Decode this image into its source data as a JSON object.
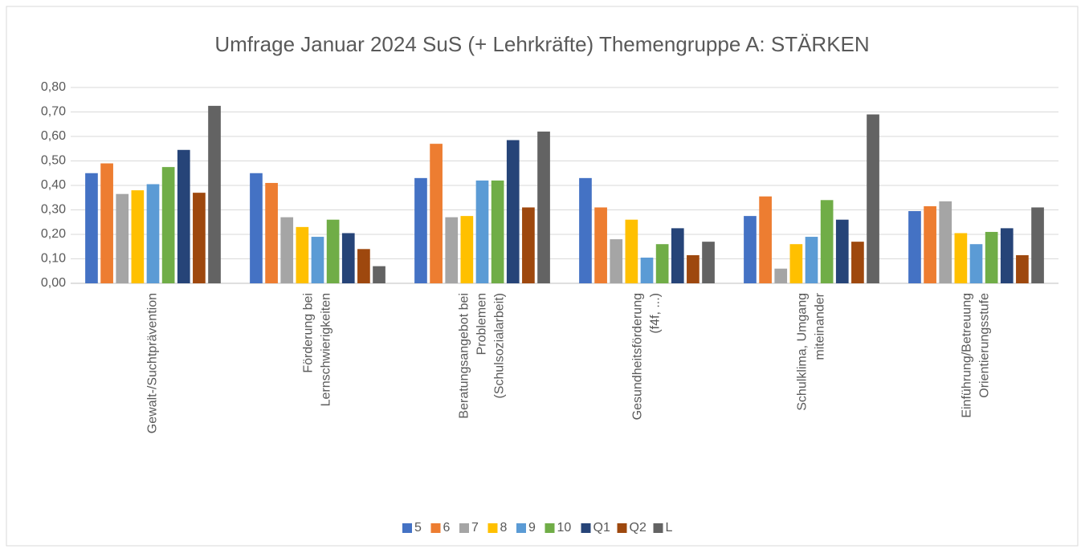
{
  "chart_data": {
    "type": "bar",
    "title": "Umfrage Januar 2024 SuS (+ Lehrkräfte) Themengruppe  A: STÄRKEN",
    "categories": [
      [
        "Gewalt-/Suchtprävention"
      ],
      [
        "Förderung bei",
        "Lernschwierigkeiten"
      ],
      [
        "Beratungsangebot bei",
        "Problemen",
        "(Schulsozialarbeit)"
      ],
      [
        "Gesundheitsförderung",
        "(f4f, ...)"
      ],
      [
        "Schulklima, Umgang",
        "miteinander"
      ],
      [
        "Einführung/Betreuung",
        "Orientierungsstufe"
      ]
    ],
    "series": [
      {
        "name": "5",
        "color": "#4472c4",
        "values": [
          0.45,
          0.45,
          0.43,
          0.43,
          0.275,
          0.295
        ]
      },
      {
        "name": "6",
        "color": "#ed7d31",
        "values": [
          0.49,
          0.41,
          0.57,
          0.31,
          0.355,
          0.315
        ]
      },
      {
        "name": "7",
        "color": "#a5a5a5",
        "values": [
          0.365,
          0.27,
          0.27,
          0.18,
          0.06,
          0.335
        ]
      },
      {
        "name": "8",
        "color": "#ffc000",
        "values": [
          0.38,
          0.23,
          0.275,
          0.26,
          0.16,
          0.205
        ]
      },
      {
        "name": "9",
        "color": "#5b9bd5",
        "values": [
          0.405,
          0.19,
          0.42,
          0.105,
          0.19,
          0.16
        ]
      },
      {
        "name": "10",
        "color": "#70ad47",
        "values": [
          0.475,
          0.26,
          0.42,
          0.16,
          0.34,
          0.21
        ]
      },
      {
        "name": "Q1",
        "color": "#264478",
        "values": [
          0.545,
          0.205,
          0.585,
          0.225,
          0.26,
          0.225
        ]
      },
      {
        "name": "Q2",
        "color": "#9e480e",
        "values": [
          0.37,
          0.14,
          0.31,
          0.115,
          0.17,
          0.115
        ]
      },
      {
        "name": "L",
        "color": "#636363",
        "values": [
          0.725,
          0.07,
          0.62,
          0.17,
          0.69,
          0.31
        ]
      }
    ],
    "ylim": [
      0,
      0.8
    ],
    "yticks": [
      {
        "value": 0,
        "label": "0,00"
      },
      {
        "value": 0.1,
        "label": "0,10"
      },
      {
        "value": 0.2,
        "label": "0,20"
      },
      {
        "value": 0.3,
        "label": "0,30"
      },
      {
        "value": 0.4,
        "label": "0,40"
      },
      {
        "value": 0.5,
        "label": "0,50"
      },
      {
        "value": 0.6,
        "label": "0,60"
      },
      {
        "value": 0.7,
        "label": "0,70"
      },
      {
        "value": 0.8,
        "label": "0,80"
      }
    ],
    "grid": true,
    "legend": "bottom"
  }
}
